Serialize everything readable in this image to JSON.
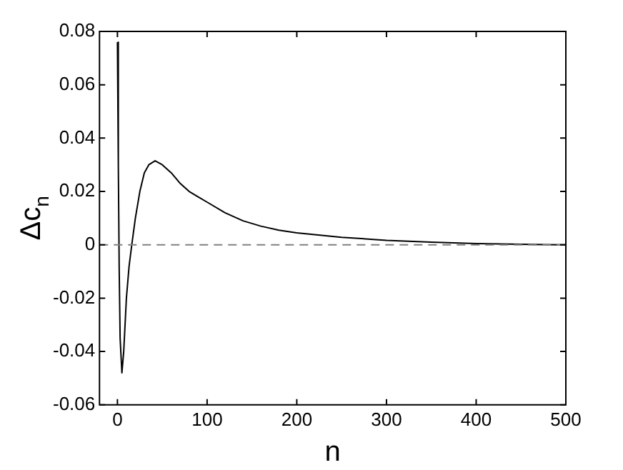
{
  "chart_data": {
    "type": "line",
    "xlabel": "n",
    "ylabel": "Δc$_{n}$",
    "x": [
      0,
      1,
      2,
      3,
      5,
      7,
      10,
      13,
      16,
      20,
      25,
      30,
      35,
      42,
      50,
      60,
      70,
      80,
      90,
      100,
      120,
      140,
      160,
      180,
      200,
      250,
      300,
      350,
      400,
      450,
      500
    ],
    "series": [
      {
        "color": "#000000",
        "values": [
          0.076,
          0.03,
          -0.01,
          -0.035,
          -0.048,
          -0.04,
          -0.02,
          -0.008,
          0,
          0.01,
          0.02,
          0.027,
          0.03,
          0.0315,
          0.03,
          0.027,
          0.023,
          0.02,
          0.018,
          0.016,
          0.012,
          0.009,
          0.007,
          0.0055,
          0.0045,
          0.0028,
          0.0017,
          0.001,
          0.0005,
          0.0002,
          0
        ]
      }
    ],
    "xlim": [
      -20,
      500
    ],
    "xticks": [
      0,
      100,
      200,
      300,
      400,
      500
    ],
    "ylim": [
      -0.06,
      0.08
    ],
    "yticks": [
      -0.06,
      -0.04,
      -0.02,
      0,
      0.02,
      0.04,
      0.06,
      0.08
    ],
    "ref_lines": [
      {
        "axis": "y",
        "value": 0,
        "color": "#808080",
        "line_style": "dashed"
      }
    ],
    "grid": false,
    "legend": false,
    "marker": "none",
    "line_style": "solid"
  }
}
